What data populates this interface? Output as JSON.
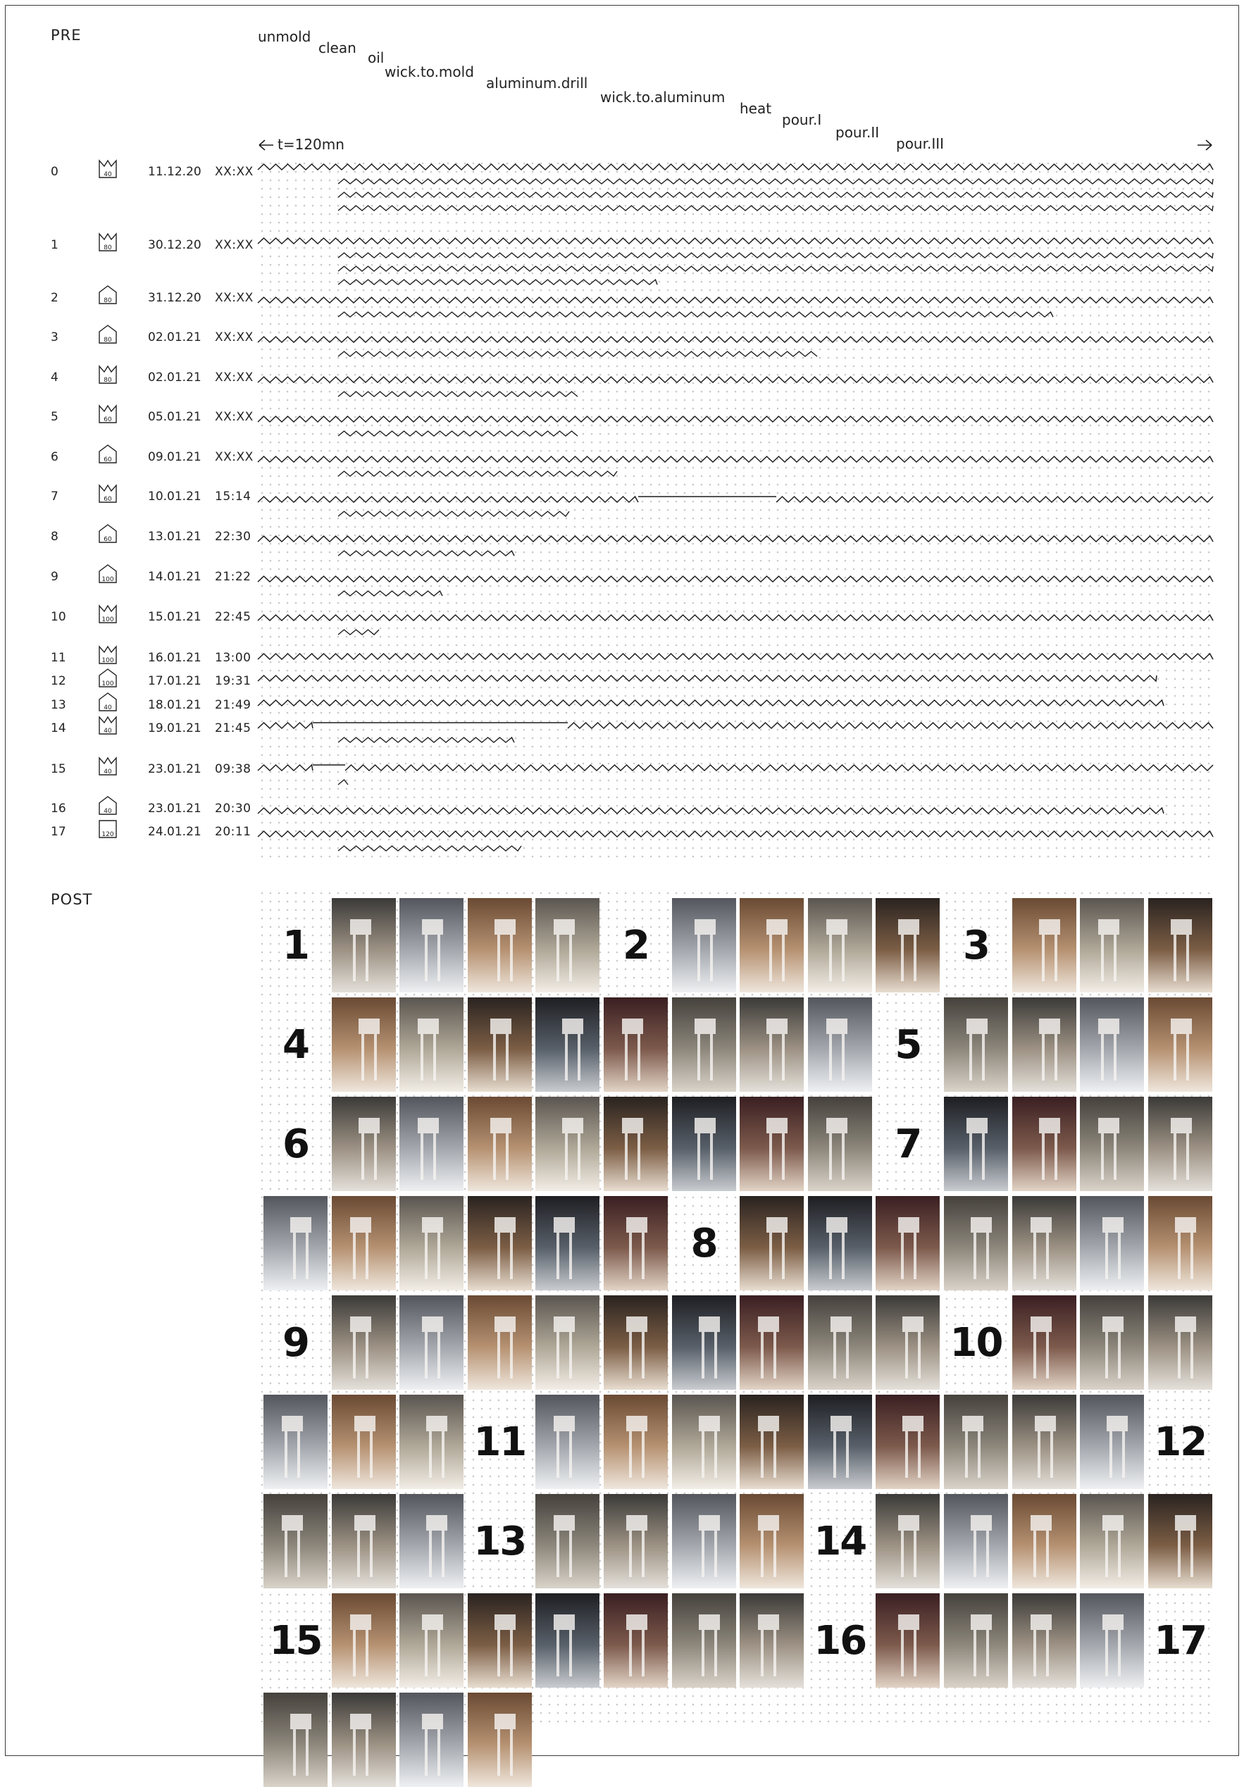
{
  "sections": {
    "pre": "PRE",
    "post": "POST"
  },
  "axis": {
    "label": "t=120mn"
  },
  "steps": [
    "unmold",
    "clean",
    "oil",
    "wick.to.mold",
    "aluminum.drill",
    "wick.to.aluminum",
    "heat",
    "pour.I",
    "pour.II",
    "pour.III"
  ],
  "runs": [
    {
      "n": "0",
      "mold": "40",
      "shape": "crown",
      "date": "11.12.20",
      "time": "XX:XX"
    },
    {
      "n": "1",
      "mold": "80",
      "shape": "crown",
      "date": "30.12.20",
      "time": "XX:XX"
    },
    {
      "n": "2",
      "mold": "80",
      "shape": "house",
      "date": "31.12.20",
      "time": "XX:XX"
    },
    {
      "n": "3",
      "mold": "80",
      "shape": "house",
      "date": "02.01.21",
      "time": "XX:XX"
    },
    {
      "n": "4",
      "mold": "80",
      "shape": "crown",
      "date": "02.01.21",
      "time": "XX:XX"
    },
    {
      "n": "5",
      "mold": "60",
      "shape": "crown",
      "date": "05.01.21",
      "time": "XX:XX"
    },
    {
      "n": "6",
      "mold": "60",
      "shape": "house",
      "date": "09.01.21",
      "time": "XX:XX"
    },
    {
      "n": "7",
      "mold": "60",
      "shape": "crown",
      "date": "10.01.21",
      "time": "15:14"
    },
    {
      "n": "8",
      "mold": "60",
      "shape": "house",
      "date": "13.01.21",
      "time": "22:30"
    },
    {
      "n": "9",
      "mold": "100",
      "shape": "house",
      "date": "14.01.21",
      "time": "21:22"
    },
    {
      "n": "10",
      "mold": "100",
      "shape": "crown",
      "date": "15.01.21",
      "time": "22:45"
    },
    {
      "n": "11",
      "mold": "100",
      "shape": "crown",
      "date": "16.01.21",
      "time": "13:00"
    },
    {
      "n": "12",
      "mold": "100",
      "shape": "house",
      "date": "17.01.21",
      "time": "19:31"
    },
    {
      "n": "13",
      "mold": "40",
      "shape": "house",
      "date": "18.01.21",
      "time": "21:49"
    },
    {
      "n": "14",
      "mold": "40",
      "shape": "crown",
      "date": "19.01.21",
      "time": "21:45"
    },
    {
      "n": "15",
      "mold": "40",
      "shape": "crown",
      "date": "23.01.21",
      "time": "09:38"
    },
    {
      "n": "16",
      "mold": "40",
      "shape": "house",
      "date": "23.01.21",
      "time": "20:30"
    },
    {
      "n": "17",
      "mold": "120",
      "shape": "box",
      "date": "24.01.21",
      "time": "20:11"
    }
  ],
  "gallery": [
    {
      "num": "1",
      "photos": 4
    },
    {
      "num": "2",
      "photos": 4
    },
    {
      "num": "3",
      "photos": 3
    },
    {
      "num": "4",
      "photos": 8
    },
    {
      "num": "5",
      "photos": 4
    },
    {
      "num": "6",
      "photos": 8
    },
    {
      "num": "7",
      "photos": 10
    },
    {
      "num": "8",
      "photos": 7
    },
    {
      "num": "9",
      "photos": 9
    },
    {
      "num": "10",
      "photos": 6
    },
    {
      "num": "11",
      "photos": 9
    },
    {
      "num": "12",
      "photos": 3
    },
    {
      "num": "13",
      "photos": 4
    },
    {
      "num": "14",
      "photos": 5
    },
    {
      "num": "15",
      "photos": 7
    },
    {
      "num": "16",
      "photos": 4
    },
    {
      "num": "17",
      "photos": 4
    }
  ],
  "colors": {
    "line": "#1c1c1c",
    "grid": "#c9c9c9",
    "frame": "#3a3a3a"
  }
}
